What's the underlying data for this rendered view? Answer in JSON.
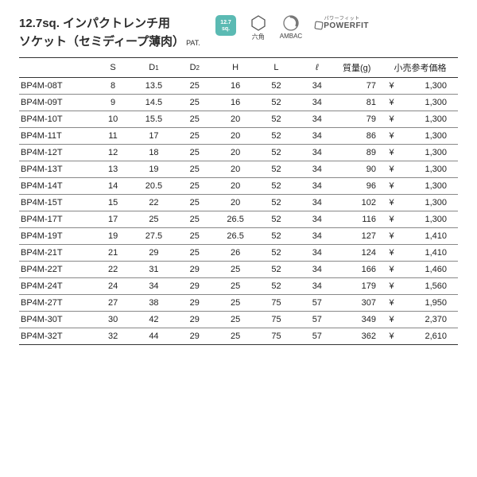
{
  "title": {
    "line1": "12.7sq. インパクトレンチ用",
    "line2": "ソケット（セミディープ薄肉）",
    "pat": "PAT."
  },
  "badges": {
    "sq": {
      "line1": "12.7",
      "line2": "sq."
    },
    "hex": "六角",
    "ambac": "AMBAC",
    "powerfit": "POWERFIT",
    "powerfit_kana": "パワーフィット"
  },
  "columns": {
    "part": "",
    "s": "S",
    "d1": "D",
    "d1sub": "1",
    "d2": "D",
    "d2sub": "2",
    "h": "H",
    "l": "L",
    "ell": "ℓ",
    "mass": "質量(g)",
    "price": "小売参考価格"
  },
  "currency": "¥",
  "rows": [
    {
      "p": "BP4M-08T",
      "s": "8",
      "d1": "13.5",
      "d2": "25",
      "h": "16",
      "l": "52",
      "e": "34",
      "m": "77",
      "pr": "1,300"
    },
    {
      "p": "BP4M-09T",
      "s": "9",
      "d1": "14.5",
      "d2": "25",
      "h": "16",
      "l": "52",
      "e": "34",
      "m": "81",
      "pr": "1,300"
    },
    {
      "p": "BP4M-10T",
      "s": "10",
      "d1": "15.5",
      "d2": "25",
      "h": "20",
      "l": "52",
      "e": "34",
      "m": "79",
      "pr": "1,300"
    },
    {
      "p": "BP4M-11T",
      "s": "11",
      "d1": "17",
      "d2": "25",
      "h": "20",
      "l": "52",
      "e": "34",
      "m": "86",
      "pr": "1,300"
    },
    {
      "p": "BP4M-12T",
      "s": "12",
      "d1": "18",
      "d2": "25",
      "h": "20",
      "l": "52",
      "e": "34",
      "m": "89",
      "pr": "1,300"
    },
    {
      "p": "BP4M-13T",
      "s": "13",
      "d1": "19",
      "d2": "25",
      "h": "20",
      "l": "52",
      "e": "34",
      "m": "90",
      "pr": "1,300"
    },
    {
      "p": "BP4M-14T",
      "s": "14",
      "d1": "20.5",
      "d2": "25",
      "h": "20",
      "l": "52",
      "e": "34",
      "m": "96",
      "pr": "1,300"
    },
    {
      "p": "BP4M-15T",
      "s": "15",
      "d1": "22",
      "d2": "25",
      "h": "20",
      "l": "52",
      "e": "34",
      "m": "102",
      "pr": "1,300"
    },
    {
      "p": "BP4M-17T",
      "s": "17",
      "d1": "25",
      "d2": "25",
      "h": "26.5",
      "l": "52",
      "e": "34",
      "m": "116",
      "pr": "1,300"
    },
    {
      "p": "BP4M-19T",
      "s": "19",
      "d1": "27.5",
      "d2": "25",
      "h": "26.5",
      "l": "52",
      "e": "34",
      "m": "127",
      "pr": "1,410"
    },
    {
      "p": "BP4M-21T",
      "s": "21",
      "d1": "29",
      "d2": "25",
      "h": "26",
      "l": "52",
      "e": "34",
      "m": "124",
      "pr": "1,410"
    },
    {
      "p": "BP4M-22T",
      "s": "22",
      "d1": "31",
      "d2": "29",
      "h": "25",
      "l": "52",
      "e": "34",
      "m": "166",
      "pr": "1,460"
    },
    {
      "p": "BP4M-24T",
      "s": "24",
      "d1": "34",
      "d2": "29",
      "h": "25",
      "l": "52",
      "e": "34",
      "m": "179",
      "pr": "1,560"
    },
    {
      "p": "BP4M-27T",
      "s": "27",
      "d1": "38",
      "d2": "29",
      "h": "25",
      "l": "75",
      "e": "57",
      "m": "307",
      "pr": "1,950"
    },
    {
      "p": "BP4M-30T",
      "s": "30",
      "d1": "42",
      "d2": "29",
      "h": "25",
      "l": "75",
      "e": "57",
      "m": "349",
      "pr": "2,370"
    },
    {
      "p": "BP4M-32T",
      "s": "32",
      "d1": "44",
      "d2": "29",
      "h": "25",
      "l": "75",
      "e": "57",
      "m": "362",
      "pr": "2,610"
    }
  ],
  "style": {
    "border_color": "#333333",
    "row_border_color": "#888888",
    "header_border_width": 1.5,
    "row_border_width": 0.5,
    "body_font_size": 11,
    "title_font_size": 15,
    "badge_sq_color": "#5bbab3",
    "text_color": "#222222",
    "background_color": "#ffffff"
  }
}
